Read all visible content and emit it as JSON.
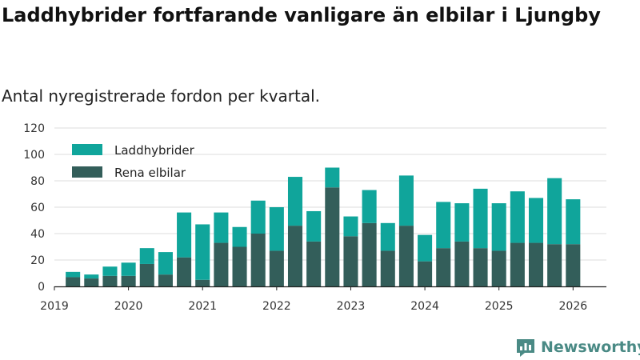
{
  "colors": {
    "laddhybrider": "#10a59b",
    "rena": "#335e5a",
    "grid": "#dddddd",
    "axis": "#222222",
    "brand": "#4a8a85"
  },
  "brand": {
    "name": "Newsworthy"
  },
  "chart_data": {
    "type": "bar",
    "stacked": true,
    "title": "Laddhybrider fortfarande vanligare än elbilar i Ljungby",
    "subtitle": "Antal nyregistrerade fordon per kvartal.",
    "xlabel": "",
    "ylabel": "",
    "ylim": [
      0,
      120
    ],
    "yticks": [
      0,
      20,
      40,
      60,
      80,
      100,
      120
    ],
    "xlim": [
      2019.0,
      2026.45
    ],
    "xticks": [
      2019,
      2020,
      2021,
      2022,
      2023,
      2024,
      2025,
      2026
    ],
    "xtick_labels": [
      "2019",
      "2020",
      "2021",
      "2022",
      "2023",
      "2024",
      "2025",
      "2026"
    ],
    "legend_position": "top-left",
    "x": [
      2019.25,
      2019.5,
      2019.75,
      2020.0,
      2020.25,
      2020.5,
      2020.75,
      2021.0,
      2021.25,
      2021.5,
      2021.75,
      2022.0,
      2022.25,
      2022.5,
      2022.75,
      2023.0,
      2023.25,
      2023.5,
      2023.75,
      2024.0,
      2024.25,
      2024.5,
      2024.75,
      2025.0,
      2025.25,
      2025.5,
      2025.75,
      2026.0
    ],
    "series": [
      {
        "name": "Rena elbilar",
        "values": [
          7,
          6,
          8,
          8,
          17,
          9,
          22,
          5,
          33,
          30,
          40,
          27,
          46,
          34,
          75,
          38,
          48,
          27,
          46,
          19,
          29,
          34,
          29,
          27,
          33,
          33,
          32,
          32
        ]
      },
      {
        "name": "Laddhybrider",
        "values": [
          4,
          3,
          7,
          10,
          12,
          17,
          34,
          42,
          23,
          15,
          25,
          33,
          37,
          23,
          15,
          15,
          25,
          21,
          38,
          20,
          35,
          29,
          45,
          36,
          39,
          34,
          50,
          34
        ]
      }
    ]
  }
}
